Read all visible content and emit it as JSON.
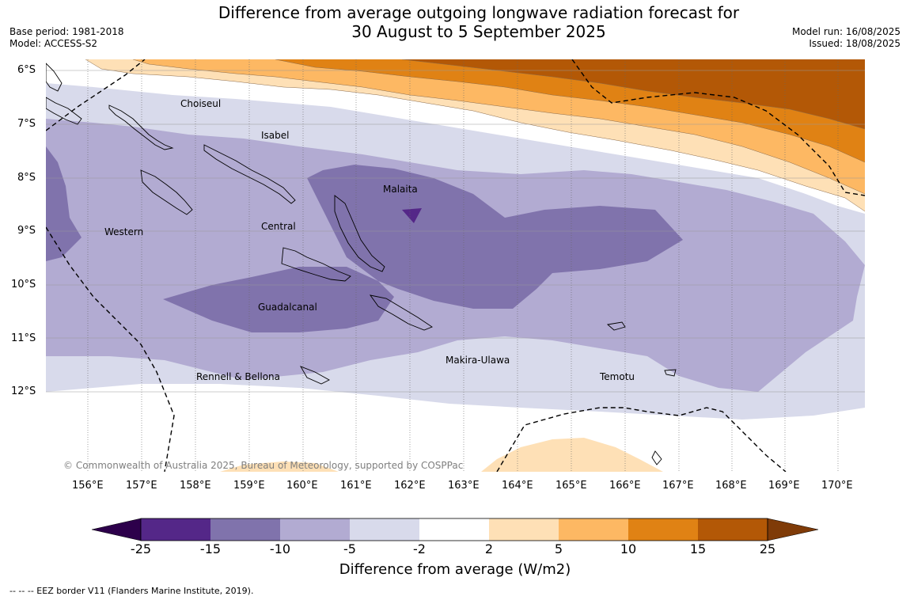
{
  "header": {
    "title_line1": "Difference from average outgoing longwave radiation forecast for",
    "title_line2": "30 August to 5 September 2025",
    "base_period": "Base period: 1981-2018",
    "model": "Model: ACCESS-S2",
    "model_run": "Model run: 16/08/2025",
    "issued": "Issued: 18/08/2025"
  },
  "map": {
    "lat_labels": [
      "6°S",
      "7°S",
      "8°S",
      "9°S",
      "10°S",
      "11°S",
      "12°S"
    ],
    "lon_labels": [
      "156°E",
      "157°E",
      "158°E",
      "159°E",
      "160°E",
      "161°E",
      "162°E",
      "163°E",
      "164°E",
      "165°E",
      "166°E",
      "167°E",
      "168°E",
      "169°E",
      "170°E"
    ],
    "regions": [
      "Choiseul",
      "Isabel",
      "Malaita",
      "Western",
      "Central",
      "Guadalcanal",
      "Makira-Ulawa",
      "Rennell & Bellona",
      "Temotu"
    ],
    "copyright": "© Commonwealth of Australia 2025, Bureau of Meteorology, supported by COSPPac",
    "colors": {
      "lt_-25": "#2d004b",
      "-25_-15": "#542788",
      "-15_-10": "#8073ac",
      "-10_-5": "#b2abd2",
      "-5_-2": "#d8daeb",
      "-2_2": "#ffffff",
      "2_5": "#fee0b6",
      "5_10": "#fdb863",
      "10_15": "#e08214",
      "15_25": "#b35806",
      "gt_25": "#7f3b08"
    }
  },
  "colorbar": {
    "ticks": [
      "-25",
      "-15",
      "-10",
      "-5",
      "-2",
      "2",
      "5",
      "10",
      "15",
      "25"
    ],
    "title": "Difference from average (W/m2)"
  },
  "footnote": "--  --  -- EEZ border V11 (Flanders Marine Institute, 2019)."
}
